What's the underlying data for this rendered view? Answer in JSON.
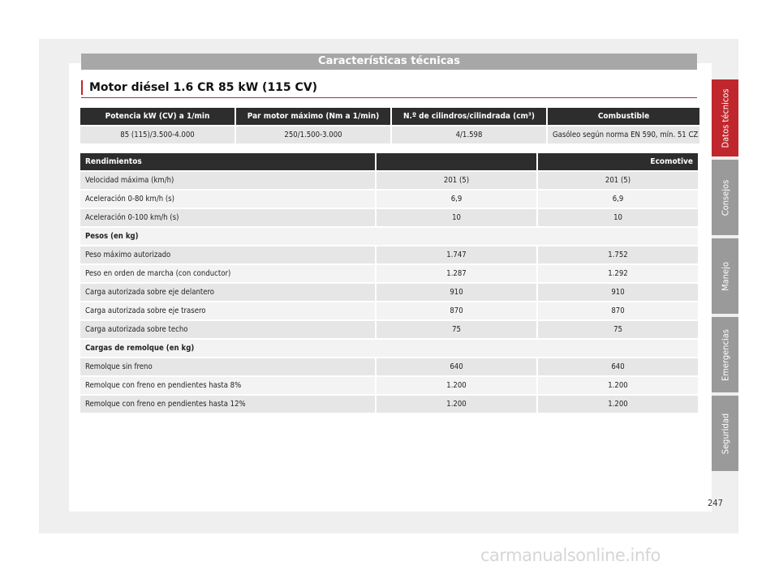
{
  "section_header": "Características técnicas",
  "title": "Motor diésel 1.6 CR 85 kW (115 CV)",
  "engine_table": {
    "headers": [
      "Potencia kW (CV) a 1/min",
      "Par motor máximo (Nm a 1/min)",
      "N.º de cilindros/cilindrada (cm³)",
      "Combustible"
    ],
    "row": [
      "85 (115)/3.500-4.000",
      "250/1.500-3.000",
      "4/1.598",
      "Gasóleo según norma EN 590, mín. 51 CZ"
    ]
  },
  "performance_table": {
    "headers": [
      "Rendimientos",
      "",
      "Ecomotive"
    ],
    "rows": [
      {
        "label": "Velocidad máxima (km/h)",
        "v1": "201 (5)",
        "v2": "201 (5)"
      },
      {
        "label": "Aceleración 0-80 km/h (s)",
        "v1": "6,9",
        "v2": "6,9"
      },
      {
        "label": "Aceleración 0-100 km/h (s)",
        "v1": "10",
        "v2": "10"
      },
      {
        "label": "Pesos (en kg)",
        "v1": "",
        "v2": ""
      },
      {
        "label": "Peso máximo autorizado",
        "v1": "1.747",
        "v2": "1.752"
      },
      {
        "label": "Peso en orden de marcha (con conductor)",
        "v1": "1.287",
        "v2": "1.292"
      },
      {
        "label": "Carga autorizada sobre eje delantero",
        "v1": "910",
        "v2": "910"
      },
      {
        "label": "Carga autorizada sobre eje trasero",
        "v1": "870",
        "v2": "870"
      },
      {
        "label": "Carga autorizada sobre techo",
        "v1": "75",
        "v2": "75"
      },
      {
        "label": "Cargas de remolque (en kg)",
        "v1": "",
        "v2": ""
      },
      {
        "label": "Remolque sin freno",
        "v1": "640",
        "v2": "640"
      },
      {
        "label": "Remolque con freno en pendientes hasta 8%",
        "v1": "1.200",
        "v2": "1.200"
      },
      {
        "label": "Remolque con freno en pendientes hasta 12%",
        "v1": "1.200",
        "v2": "1.200"
      }
    ]
  },
  "side_tabs": [
    "Datos técnicos",
    "Consejos",
    "Manejo",
    "Emergencias",
    "Seguridad"
  ],
  "page_number": "247",
  "watermark": "carmanualsonline.info",
  "colors": {
    "accent": "#c0272d",
    "header_bg": "#2d2d2d",
    "tab_gray": "#9a9a9a"
  }
}
